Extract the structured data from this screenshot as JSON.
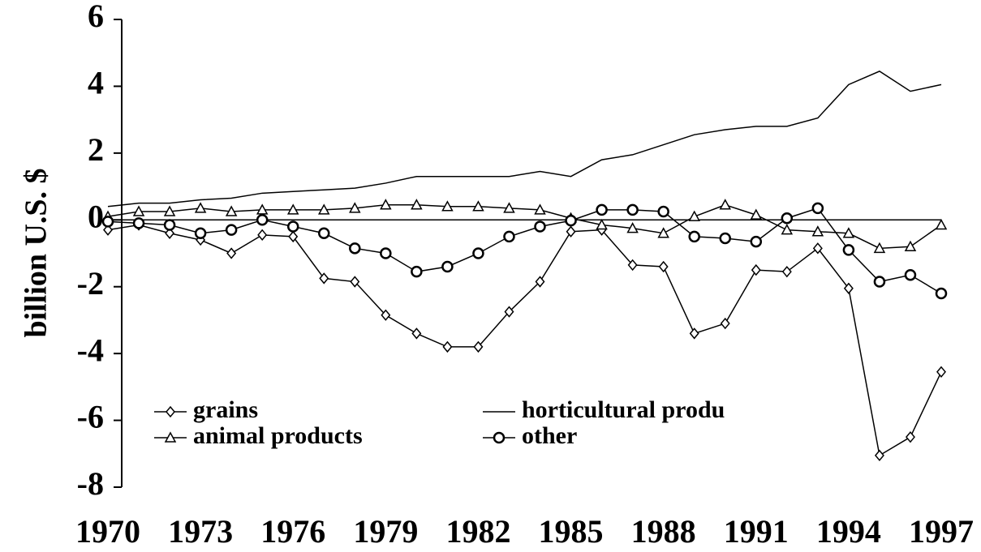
{
  "chart_data": {
    "type": "line",
    "y_label": "billion U.S. $",
    "x": [
      1970,
      1971,
      1972,
      1973,
      1974,
      1975,
      1976,
      1977,
      1978,
      1979,
      1980,
      1981,
      1982,
      1983,
      1984,
      1985,
      1986,
      1987,
      1988,
      1989,
      1990,
      1991,
      1992,
      1993,
      1994,
      1995,
      1996,
      1997
    ],
    "series": [
      {
        "name": "grains",
        "color": "#000000",
        "marker": "diamond",
        "values": [
          -0.3,
          -0.15,
          -0.4,
          -0.6,
          -1.0,
          -0.45,
          -0.5,
          -1.75,
          -1.85,
          -2.85,
          -3.4,
          -3.8,
          -3.8,
          -2.75,
          -1.85,
          -0.35,
          -0.3,
          -1.35,
          -1.4,
          -3.4,
          -3.1,
          -1.5,
          -1.55,
          -0.85,
          -2.05,
          -7.05,
          -6.5,
          -4.55
        ]
      },
      {
        "name": "horticultural produ",
        "color": "#000000",
        "marker": "none",
        "values": [
          0.4,
          0.5,
          0.5,
          0.6,
          0.65,
          0.8,
          0.85,
          0.9,
          0.95,
          1.1,
          1.3,
          1.3,
          1.3,
          1.3,
          1.45,
          1.3,
          1.8,
          1.95,
          2.25,
          2.55,
          2.7,
          2.8,
          2.8,
          3.05,
          4.05,
          4.45,
          3.85,
          4.05
        ]
      },
      {
        "name": "animal products",
        "color": "#000000",
        "marker": "triangle",
        "values": [
          0.1,
          0.25,
          0.25,
          0.35,
          0.25,
          0.3,
          0.3,
          0.3,
          0.35,
          0.45,
          0.45,
          0.4,
          0.4,
          0.35,
          0.3,
          0.05,
          -0.15,
          -0.25,
          -0.4,
          0.1,
          0.45,
          0.15,
          -0.3,
          -0.35,
          -0.4,
          -0.85,
          -0.8,
          -0.15
        ]
      },
      {
        "name": "other",
        "color": "#000000",
        "marker": "circle",
        "values": [
          -0.05,
          -0.1,
          -0.15,
          -0.4,
          -0.3,
          0,
          -0.2,
          -0.4,
          -0.85,
          -1.0,
          -1.55,
          -1.4,
          -1.0,
          -0.5,
          -0.2,
          -0.02,
          0.3,
          0.3,
          0.25,
          -0.5,
          -0.55,
          -0.65,
          0.05,
          0.35,
          -0.9,
          -1.85,
          -1.65,
          -2.2
        ]
      }
    ],
    "xlim": [
      1970,
      1997
    ],
    "xticks": [
      1970,
      1973,
      1976,
      1979,
      1982,
      1985,
      1988,
      1991,
      1994,
      1997
    ],
    "ylim": [
      -8,
      6
    ],
    "yticks": [
      -8,
      -6,
      -4,
      -2,
      0,
      2,
      4,
      6
    ],
    "grid": false,
    "legend": "lower left"
  }
}
